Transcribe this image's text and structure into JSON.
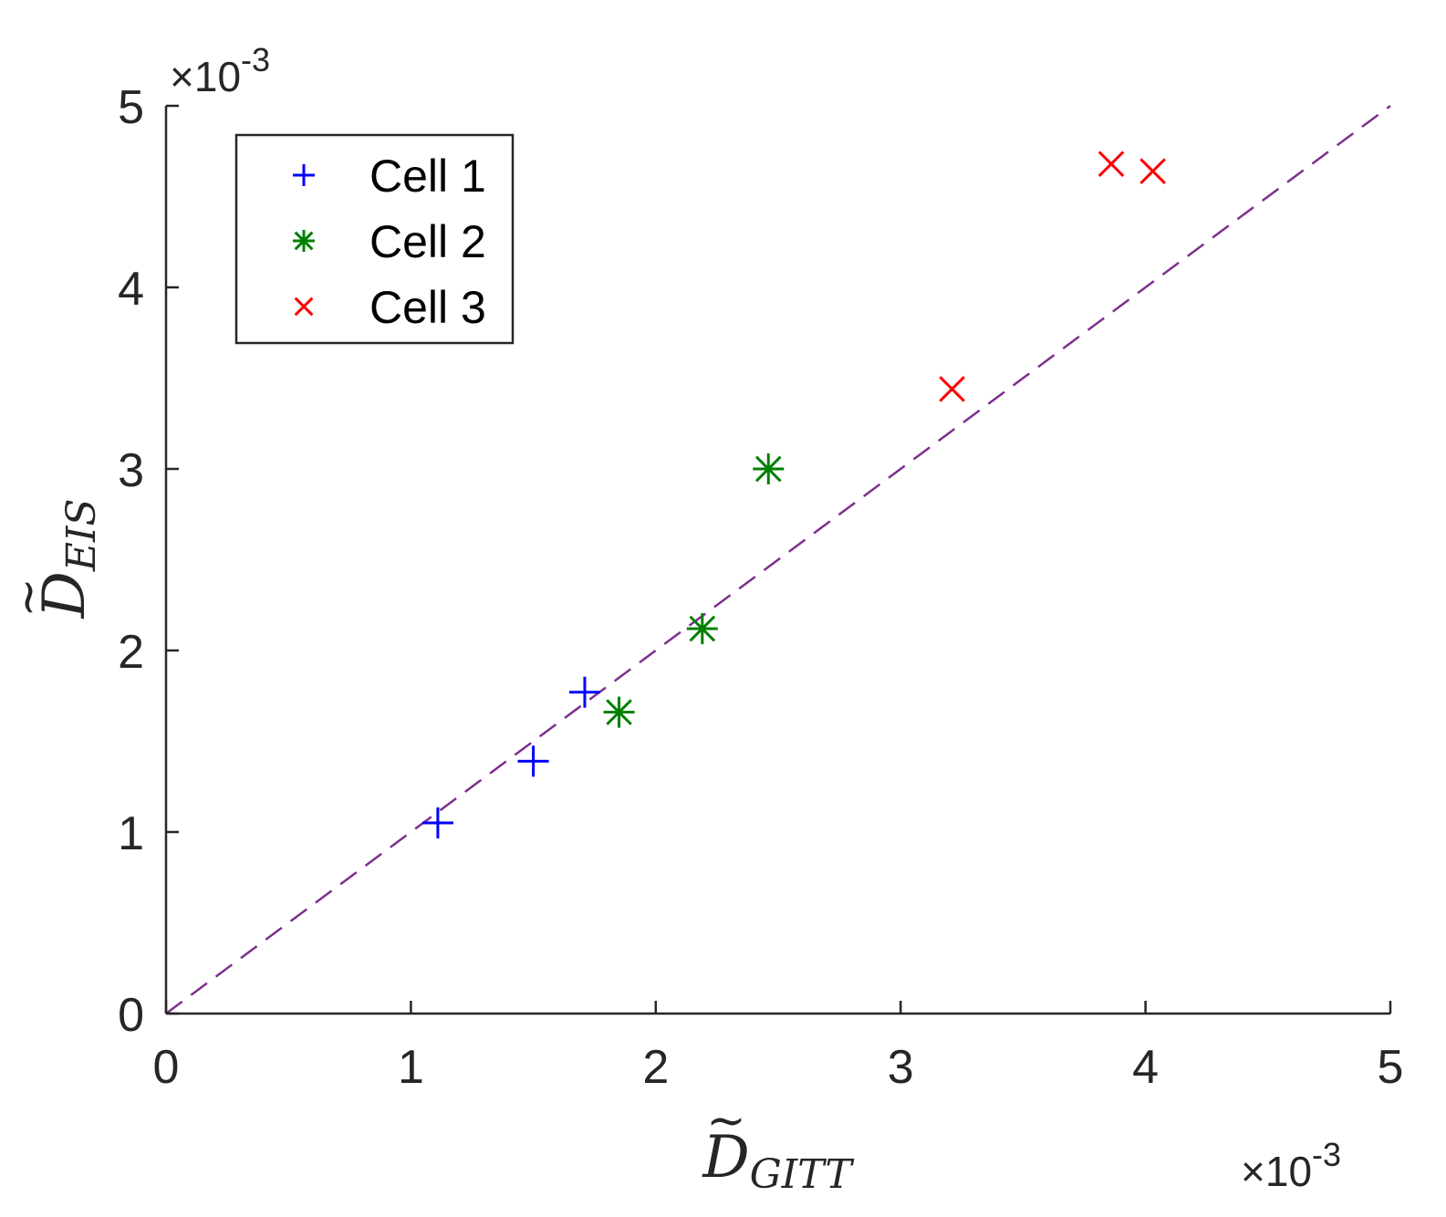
{
  "chart_data": {
    "type": "scatter",
    "xlabel": {
      "base": "D",
      "sub": "GITT",
      "mark": "~"
    },
    "ylabel": {
      "base": "D",
      "sub": "EIS",
      "mark": "~"
    },
    "xlim": [
      0,
      0.005
    ],
    "ylim": [
      0,
      0.005
    ],
    "xticks": [
      "0",
      "1",
      "2",
      "3",
      "4",
      "5"
    ],
    "yticks": [
      "0",
      "1",
      "2",
      "3",
      "4",
      "5"
    ],
    "x_exponent": {
      "times": "×",
      "base": "10",
      "power": "-3"
    },
    "y_exponent": {
      "times": "×",
      "base": "10",
      "power": "-3"
    },
    "grid": false,
    "legend_position": "top-left",
    "series": [
      {
        "name": "Cell 1",
        "marker": "plus",
        "color": "#0000ff",
        "points": [
          [
            0.00111,
            0.00105
          ],
          [
            0.0015,
            0.00139
          ],
          [
            0.00171,
            0.00177
          ]
        ]
      },
      {
        "name": "Cell 2",
        "marker": "asterisk",
        "color": "#008000",
        "points": [
          [
            0.00185,
            0.00166
          ],
          [
            0.00219,
            0.00212
          ],
          [
            0.00246,
            0.003
          ]
        ]
      },
      {
        "name": "Cell 3",
        "marker": "x",
        "color": "#ff0000",
        "points": [
          [
            0.00321,
            0.00344
          ],
          [
            0.00386,
            0.00468
          ],
          [
            0.00403,
            0.00464
          ]
        ]
      }
    ],
    "reference_line": {
      "style": "dashed",
      "color": "#7e2f8e",
      "from": [
        0,
        0
      ],
      "to": [
        0.005,
        0.005
      ]
    }
  }
}
